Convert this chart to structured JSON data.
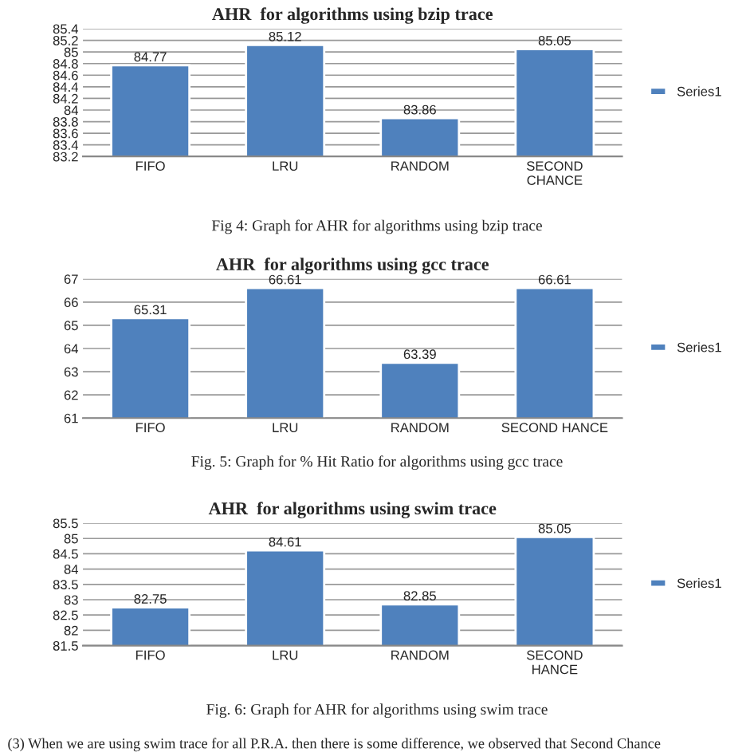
{
  "chart_data": [
    {
      "type": "bar",
      "title": "AHR  for algorithms using bzip trace",
      "categories": [
        "FIFO",
        "LRU",
        "RANDOM",
        "SECOND\nCHANCE"
      ],
      "series": [
        {
          "name": "Series1",
          "color": "#4f81bd",
          "values": [
            84.77,
            85.12,
            83.86,
            85.05
          ]
        }
      ],
      "ylim": [
        83.2,
        85.4
      ],
      "yticks": [
        {
          "value": 83.2,
          "label": "83.2"
        },
        {
          "value": 83.4,
          "label": "83.4"
        },
        {
          "value": 83.6,
          "label": "83.6"
        },
        {
          "value": 83.8,
          "label": "83.8"
        },
        {
          "value": 84,
          "label": "84"
        },
        {
          "value": 84.2,
          "label": "84.2"
        },
        {
          "value": 84.4,
          "label": "84.4"
        },
        {
          "value": 84.6,
          "label": "84.6"
        },
        {
          "value": 84.8,
          "label": "84.8"
        },
        {
          "value": 85,
          "label": "85"
        },
        {
          "value": 85.2,
          "label": "85.2"
        },
        {
          "value": 85.4,
          "label": "85.4"
        }
      ],
      "grid": "y",
      "legend": "right",
      "data_labels": true,
      "annotations": [
        "Fig 4: Graph for AHR for algorithms using bzip trace"
      ]
    },
    {
      "type": "bar",
      "title": "AHR  for algorithms using gcc trace",
      "categories": [
        "FIFO",
        "LRU",
        "RANDOM",
        "SECOND HANCE"
      ],
      "series": [
        {
          "name": "Series1",
          "color": "#4f81bd",
          "values": [
            65.31,
            66.61,
            63.39,
            66.61
          ]
        }
      ],
      "ylim": [
        61,
        67
      ],
      "yticks": [
        61,
        62,
        63,
        64,
        65,
        66,
        67
      ],
      "grid": "y",
      "legend": "right",
      "data_labels": true,
      "annotations": [
        "Fig. 5: Graph for % Hit Ratio for algorithms using gcc trace"
      ]
    },
    {
      "type": "bar",
      "title": "AHR  for algorithms using swim trace",
      "categories": [
        "FIFO",
        "LRU",
        "RANDOM",
        "SECOND\nHANCE"
      ],
      "series": [
        {
          "name": "Series1",
          "color": "#4f81bd",
          "values": [
            82.75,
            84.61,
            82.85,
            85.05
          ]
        }
      ],
      "ylim": [
        81.5,
        85.5
      ],
      "yticks": [
        {
          "value": 81.5,
          "label": "81.5"
        },
        82,
        {
          "value": 82.5,
          "label": "82.5"
        },
        83,
        {
          "value": 83.5,
          "label": "83.5"
        },
        84,
        {
          "value": 84.5,
          "label": "84.5"
        },
        85,
        {
          "value": 85.5,
          "label": "85.5"
        }
      ],
      "grid": "y",
      "legend": "right",
      "data_labels": true,
      "annotations": [
        "Fig. 6: Graph for AHR for algorithms using swim trace",
        "(3) When we are using swim trace for all P.R.A. then there is some difference, we observed that Second Chance"
      ]
    }
  ]
}
